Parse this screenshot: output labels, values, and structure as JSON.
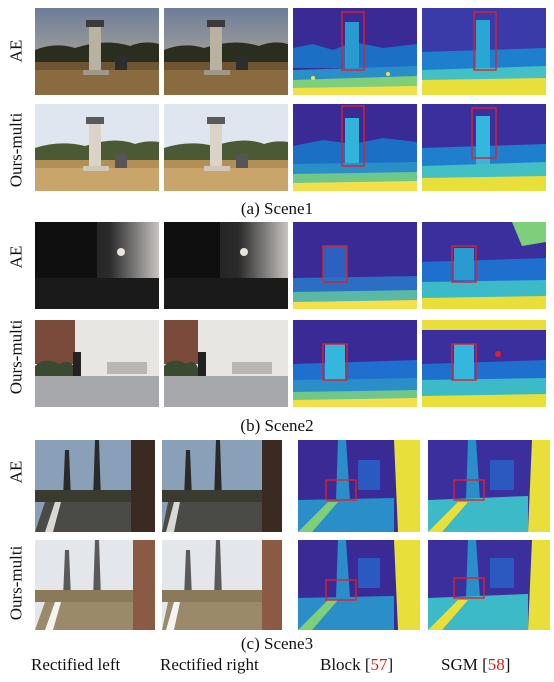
{
  "rows": [
    {
      "scene": "scene1",
      "label": "AE"
    },
    {
      "scene": "scene1",
      "label": "Ours-multi"
    },
    {
      "scene": "scene2",
      "label": "AE"
    },
    {
      "scene": "scene2",
      "label": "Ours-multi"
    },
    {
      "scene": "scene3",
      "label": "AE"
    },
    {
      "scene": "scene3",
      "label": "Ours-multi"
    }
  ],
  "captions": {
    "scene1": "(a) Scene1",
    "scene2": "(b) Scene2",
    "scene3": "(c) Scene3"
  },
  "columns": {
    "rectified_left": "Rectified left",
    "rectified_right": "Rectified right",
    "block": "Block",
    "block_ref": "57",
    "sgm": "SGM",
    "sgm_ref": "58"
  },
  "colors": {
    "citation": "#d81e1e",
    "highlight_box": "#e0202a",
    "depth_low": "#3a2a96",
    "depth_mid": "#1fa3c9",
    "depth_high": "#f4e04a"
  }
}
